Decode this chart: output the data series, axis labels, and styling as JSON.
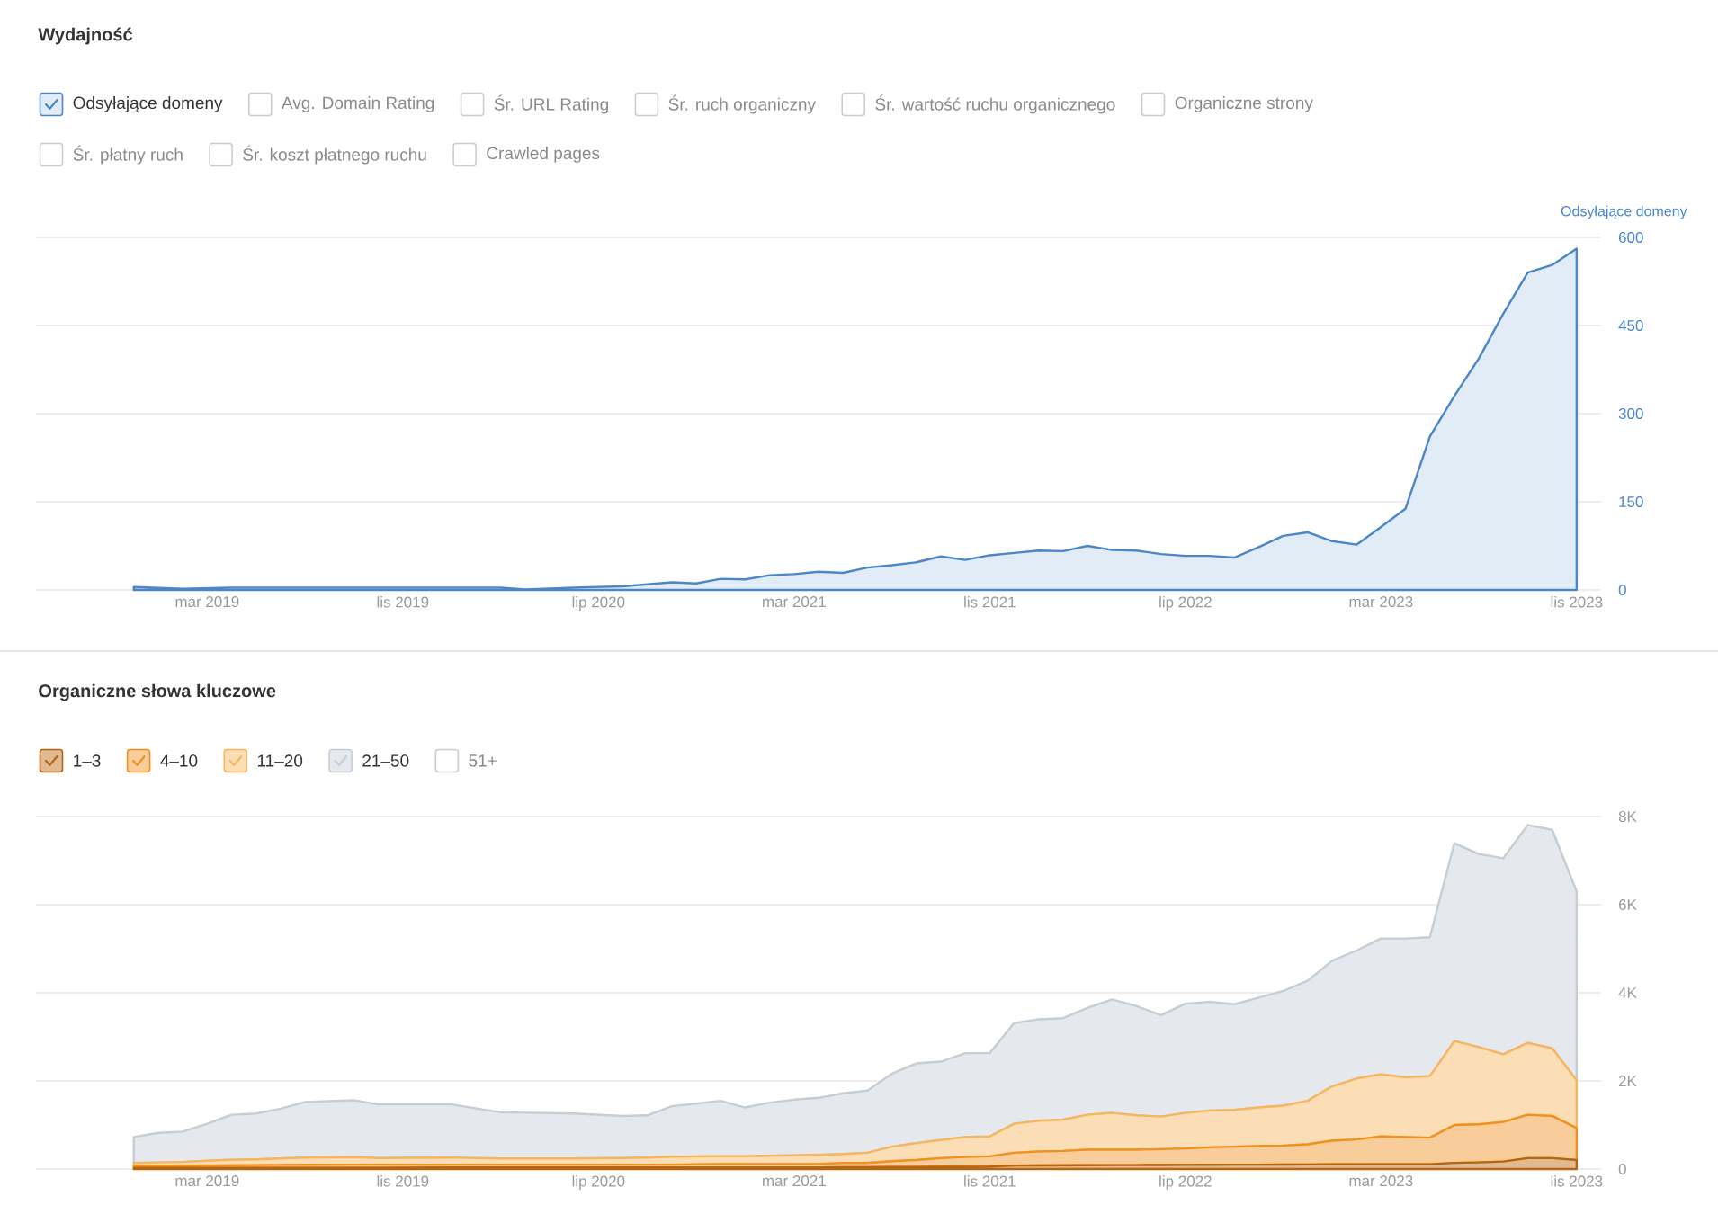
{
  "chart_data": [
    {
      "type": "area",
      "title": "Wydajność",
      "ylabel": "Odsyłające domeny",
      "x": [
        "2018-12",
        "2019-02",
        "2019-04",
        "2019-07",
        "2019-10",
        "2020-01",
        "2020-03",
        "2020-04",
        "2020-06",
        "2020-08",
        "2020-10",
        "2020-11",
        "2020-12",
        "2021-01",
        "2021-02",
        "2021-03",
        "2021-04",
        "2021-05",
        "2021-06",
        "2021-07",
        "2021-08",
        "2021-09",
        "2021-10",
        "2021-11",
        "2021-12",
        "2022-01",
        "2022-02",
        "2022-03",
        "2022-04",
        "2022-05",
        "2022-06",
        "2022-07",
        "2022-08",
        "2022-09",
        "2022-10",
        "2022-11",
        "2022-12",
        "2023-01",
        "2023-02",
        "2023-03",
        "2023-04",
        "2023-05",
        "2023-06",
        "2023-07",
        "2023-08",
        "2023-09",
        "2023-10",
        "2023-11"
      ],
      "series": [
        {
          "name": "Odsyłające domeny",
          "color": "#4a86c8",
          "values": [
            5,
            2,
            4,
            4,
            4,
            4,
            4,
            1,
            4,
            6,
            13,
            11,
            19,
            18,
            25,
            27,
            31,
            29,
            38,
            42,
            47,
            57,
            51,
            59,
            63,
            67,
            66,
            75,
            68,
            67,
            61,
            58,
            58,
            55,
            73,
            92,
            98,
            83,
            77,
            107,
            138,
            261,
            330,
            394,
            470,
            540,
            553,
            581
          ]
        }
      ],
      "annotations": [
        "Avg. Domain Rating",
        "Śr. URL Rating",
        "Śr. ruch organiczny",
        "Śr. wartość ruchu organicznego",
        "Organiczne strony",
        "Śr. płatny ruch",
        "Śr. koszt płatnego ruchu",
        "Crawled pages"
      ],
      "xlim": [
        "2018-08",
        "2023-12"
      ],
      "ylim": [
        0,
        600
      ],
      "xticks": [
        {
          "value": "2019-03",
          "label": "mar 2019"
        },
        {
          "value": "2019-11",
          "label": "lis 2019"
        },
        {
          "value": "2020-07",
          "label": "lip 2020"
        },
        {
          "value": "2021-03",
          "label": "mar 2021"
        },
        {
          "value": "2021-11",
          "label": "lis 2021"
        },
        {
          "value": "2022-07",
          "label": "lip 2022"
        },
        {
          "value": "2023-03",
          "label": "mar 2023"
        },
        {
          "value": "2023-11",
          "label": "lis 2023"
        }
      ],
      "yticks": [
        0,
        150,
        300,
        450,
        600
      ],
      "grid": "y",
      "legend": "top left"
    },
    {
      "type": "area",
      "stacked": true,
      "title": "Organiczne słowa kluczowe",
      "x": [
        "2018-12",
        "2019-01",
        "2019-02",
        "2019-03",
        "2019-04",
        "2019-05",
        "2019-06",
        "2019-07",
        "2019-09",
        "2019-10",
        "2020-01",
        "2020-03",
        "2020-06",
        "2020-08",
        "2020-09",
        "2020-10",
        "2020-12",
        "2021-01",
        "2021-02",
        "2021-03",
        "2021-04",
        "2021-05",
        "2021-06",
        "2021-07",
        "2021-08",
        "2021-09",
        "2021-10",
        "2021-11",
        "2021-12",
        "2022-01",
        "2022-02",
        "2022-03",
        "2022-04",
        "2022-05",
        "2022-06",
        "2022-07",
        "2022-08",
        "2022-09",
        "2022-10",
        "2022-11",
        "2022-12",
        "2023-01",
        "2023-02",
        "2023-03",
        "2023-04",
        "2023-05",
        "2023-06",
        "2023-07",
        "2023-08",
        "2023-09",
        "2023-10",
        "2023-11"
      ],
      "series": [
        {
          "name": "1–3",
          "color": "#b8650f",
          "values": [
            27,
            27,
            27,
            27,
            27,
            27,
            27,
            27,
            27,
            27,
            35,
            35,
            35,
            35,
            35,
            35,
            35,
            35,
            35,
            35,
            35,
            41,
            41,
            45,
            48,
            50,
            52,
            55,
            80,
            82,
            85,
            88,
            90,
            90,
            92,
            95,
            97,
            100,
            100,
            102,
            105,
            107,
            108,
            110,
            110,
            110,
            140,
            150,
            170,
            247,
            247,
            205
          ]
        },
        {
          "name": "4–10",
          "color": "#f0901e",
          "values": [
            41,
            43,
            48,
            53,
            58,
            63,
            68,
            70,
            73,
            73,
            65,
            65,
            65,
            65,
            65,
            65,
            80,
            80,
            80,
            80,
            80,
            96,
            96,
            133,
            157,
            197,
            222,
            233,
            290,
            315,
            326,
            350,
            348,
            348,
            360,
            371,
            396,
            407,
            421,
            432,
            457,
            537,
            563,
            630,
            616,
            602,
            860,
            864,
            898,
            986,
            958,
            727
          ]
        },
        {
          "name": "11–20",
          "color": "#f7b55c",
          "values": [
            69,
            80,
            85,
            110,
            125,
            130,
            144,
            163,
            170,
            150,
            160,
            140,
            140,
            150,
            160,
            180,
            175,
            175,
            185,
            195,
            205,
            205,
            233,
            329,
            384,
            411,
            452,
            452,
            657,
            699,
            712,
            795,
            836,
            781,
            740,
            808,
            836,
            835,
            876,
            904,
            986,
            1233,
            1384,
            1411,
            1356,
            1398,
            1904,
            1753,
            1535,
            1630,
            1535,
            1082
          ]
        },
        {
          "name": "21–50",
          "color": "#c5cdd5",
          "values": [
            589,
            672,
            689,
            837,
            1023,
            1040,
            1130,
            1260,
            1292,
            1216,
            1206,
            1048,
            1020,
            955,
            959,
            1145,
            1258,
            1107,
            1207,
            1265,
            1296,
            1378,
            1411,
            1657,
            1808,
            1780,
            1904,
            1890,
            2288,
            2301,
            2302,
            2425,
            2575,
            2480,
            2301,
            2479,
            2466,
            2398,
            2493,
            2603,
            2726,
            2849,
            2904,
            3082,
            3151,
            3150,
            4493,
            4384,
            4452,
            4945,
            4959,
            4287
          ]
        }
      ],
      "annotations": [
        "51+"
      ],
      "xlim": [
        "2018-08",
        "2023-12"
      ],
      "ylim": [
        0,
        8000
      ],
      "xticks": [
        {
          "value": "2019-03",
          "label": "mar 2019"
        },
        {
          "value": "2019-11",
          "label": "lis 2019"
        },
        {
          "value": "2020-07",
          "label": "lip 2020"
        },
        {
          "value": "2021-03",
          "label": "mar 2021"
        },
        {
          "value": "2021-11",
          "label": "lis 2021"
        },
        {
          "value": "2022-07",
          "label": "lip 2022"
        },
        {
          "value": "2023-03",
          "label": "mar 2023"
        },
        {
          "value": "2023-11",
          "label": "lis 2023"
        }
      ],
      "yticks": [
        0,
        {
          "value": 2000,
          "label": "2K"
        },
        {
          "value": 4000,
          "label": "4K"
        },
        {
          "value": 6000,
          "label": "6K"
        },
        {
          "value": 8000,
          "label": "8K"
        }
      ],
      "grid": "y",
      "legend": "top left"
    }
  ]
}
